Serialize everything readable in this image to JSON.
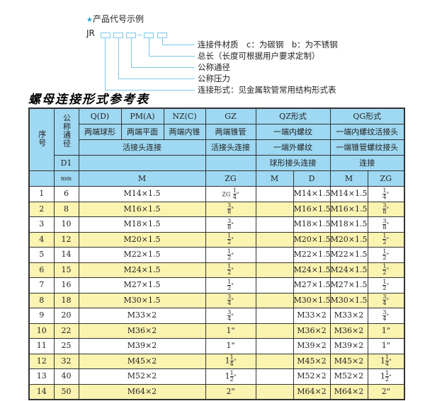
{
  "example": {
    "title": "产品代号示例",
    "prefix": "JR",
    "labels": [
      "连接件材质　c：为碳钢　b：为不锈钢",
      "总长（长度可根据用户要求定制）",
      "公称通径",
      "公称压力",
      "连接形式：见金属软管常用结构形式表"
    ]
  },
  "table_title": "螺母连接形式参考表",
  "header": {
    "seq": "序号",
    "dn": "公称通径",
    "d1": "D1",
    "mm": "mm",
    "q": "Q(D)",
    "pm": "PM(A)",
    "nz": "NZ(C)",
    "gz": "GZ",
    "qz": "QZ形式",
    "qg": "QG形式",
    "q_desc": "两端球形",
    "pm_desc": "两端平面",
    "nz_desc": "两端内锥",
    "gz_desc": "两端锥管",
    "qz_desc1": "一端内螺纹",
    "qg_desc1": "一端内螺纹活接头",
    "conn1": "活接头连接",
    "gz_conn": "活接头连接",
    "qz_desc2": "一端外螺纹",
    "qg_desc2": "一端锥管螺纹接头",
    "qz_desc3": "球形接头连接",
    "qg_desc3": "连接",
    "m": "M",
    "zg": "ZG",
    "qz_m": "M",
    "qz_d": "D",
    "qg_m": "M",
    "qg_zg": "ZG"
  },
  "rows": [
    {
      "no": "1",
      "dn": "6",
      "m": "M14×1.5",
      "zg": {
        "pre": "ZG",
        "w": "",
        "n": "1",
        "d": "4",
        "s": "\""
      },
      "qz_d": "M14×1.5",
      "qg_m": "M14×1.5"
    },
    {
      "no": "2",
      "dn": "8",
      "m": "M16×1.5",
      "zg": {
        "pre": "",
        "w": "",
        "n": "3",
        "d": "8",
        "s": "\""
      },
      "qz_d": "M16×1.5",
      "qg_m": "M16×1.5"
    },
    {
      "no": "3",
      "dn": "10",
      "m": "M18×1.5",
      "zg": {
        "pre": "",
        "w": "",
        "n": "3",
        "d": "8",
        "s": "\""
      },
      "qz_d": "M18×1.5",
      "qg_m": "M18×1.5"
    },
    {
      "no": "4",
      "dn": "12",
      "m": "M20×1.5",
      "zg": {
        "pre": "",
        "w": "",
        "n": "1",
        "d": "2",
        "s": "\""
      },
      "qz_d": "M20×1.5",
      "qg_m": "M20×1.5"
    },
    {
      "no": "5",
      "dn": "14",
      "m": "M22×1.5",
      "zg": {
        "pre": "",
        "w": "",
        "n": "1",
        "d": "2",
        "s": "\""
      },
      "qz_d": "M22×1.5",
      "qg_m": "M22×1.5"
    },
    {
      "no": "6",
      "dn": "15",
      "m": "M24×1.5",
      "zg": {
        "pre": "",
        "w": "",
        "n": "1",
        "d": "2",
        "s": "\""
      },
      "qz_d": "M24×1.5",
      "qg_m": "M24×1.5"
    },
    {
      "no": "7",
      "dn": "16",
      "m": "M27×1.5",
      "zg": {
        "pre": "",
        "w": "",
        "n": "1",
        "d": "2",
        "s": "\""
      },
      "qz_d": "M27×1.5",
      "qg_m": "M27×1.5"
    },
    {
      "no": "8",
      "dn": "18",
      "m": "M30×1.5",
      "zg": {
        "pre": "",
        "w": "",
        "n": "3",
        "d": "4",
        "s": "\""
      },
      "qz_d": "M30×1.5",
      "qg_m": "M30×1.5"
    },
    {
      "no": "9",
      "dn": "20",
      "m": "M33×2",
      "zg": {
        "pre": "",
        "w": "",
        "n": "3",
        "d": "4",
        "s": "\""
      },
      "qz_d": "M33×2",
      "qg_m": "M33×2"
    },
    {
      "no": "10",
      "dn": "22",
      "m": "M36×2",
      "zg": {
        "pre": "",
        "w": "1\"",
        "n": "",
        "d": "",
        "s": ""
      },
      "qz_d": "M36×2",
      "qg_m": "M36×2"
    },
    {
      "no": "11",
      "dn": "25",
      "m": "M39×2",
      "zg": {
        "pre": "",
        "w": "1\"",
        "n": "",
        "d": "",
        "s": ""
      },
      "qz_d": "M39×2",
      "qg_m": "M39×2"
    },
    {
      "no": "12",
      "dn": "32",
      "m": "M45×2",
      "zg": {
        "pre": "",
        "w": "1",
        "n": "1",
        "d": "4",
        "s": "\""
      },
      "qz_d": "M45×2",
      "qg_m": "M45×2"
    },
    {
      "no": "13",
      "dn": "40",
      "m": "M52×2",
      "zg": {
        "pre": "",
        "w": "1",
        "n": "1",
        "d": "2",
        "s": "\""
      },
      "qz_d": "M52×2",
      "qg_m": "M52×2"
    },
    {
      "no": "14",
      "dn": "50",
      "m": "M64×2",
      "zg": {
        "pre": "",
        "w": "2\"",
        "n": "",
        "d": "",
        "s": ""
      },
      "qz_d": "M64×2",
      "qg_m": "M64×2"
    }
  ],
  "colors": {
    "header_bg": "#9ed8f2",
    "even_row": "#fbf3b0",
    "line": "#7cc9e8",
    "star": "#2aa3d6"
  }
}
